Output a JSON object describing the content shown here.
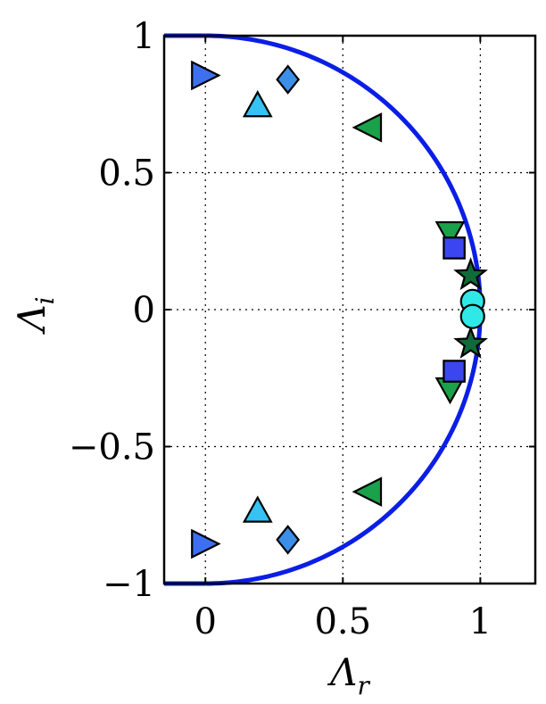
{
  "chart_data": {
    "type": "scatter",
    "xlabel": "Λ",
    "xlabel_sub": "r",
    "ylabel": "Λ",
    "ylabel_sub": "i",
    "xlim": [
      -0.15,
      1.2
    ],
    "ylim": [
      -1,
      1
    ],
    "xticks": [
      0,
      0.5,
      1
    ],
    "xtick_labels": [
      "0",
      "0.5",
      "1"
    ],
    "yticks": [
      -1,
      -0.5,
      0,
      0.5,
      1
    ],
    "ytick_labels": [
      "−1",
      "−0.5",
      "0",
      "0.5",
      "1"
    ],
    "grid": true,
    "unit_circle": {
      "color": "#0a1ee6",
      "from_deg": -90,
      "to_deg": 90
    },
    "series": [
      {
        "marker": "triangle-right",
        "color": "#3d6ff0",
        "points": [
          [
            0.0,
            0.855
          ],
          [
            0.0,
            -0.855
          ]
        ]
      },
      {
        "marker": "diamond",
        "color": "#3b8fe8",
        "points": [
          [
            0.3,
            0.84
          ],
          [
            0.3,
            -0.84
          ]
        ]
      },
      {
        "marker": "triangle-up",
        "color": "#36c2f2",
        "points": [
          [
            0.19,
            0.745
          ],
          [
            0.19,
            -0.735
          ]
        ]
      },
      {
        "marker": "triangle-left",
        "color": "#1aa24a",
        "points": [
          [
            0.59,
            0.665
          ],
          [
            0.59,
            -0.665
          ]
        ]
      },
      {
        "marker": "triangle-down",
        "color": "#1aa24a",
        "points": [
          [
            0.89,
            0.28
          ],
          [
            0.89,
            -0.29
          ]
        ]
      },
      {
        "marker": "square",
        "color": "#3b46f0",
        "points": [
          [
            0.905,
            0.225
          ],
          [
            0.905,
            -0.225
          ]
        ]
      },
      {
        "marker": "star",
        "color": "#0f6b3a",
        "points": [
          [
            0.965,
            0.125
          ],
          [
            0.965,
            -0.125
          ]
        ]
      },
      {
        "marker": "circle",
        "color": "#2fe8e8",
        "points": [
          [
            0.972,
            0.03
          ],
          [
            0.972,
            -0.025
          ]
        ]
      }
    ]
  }
}
